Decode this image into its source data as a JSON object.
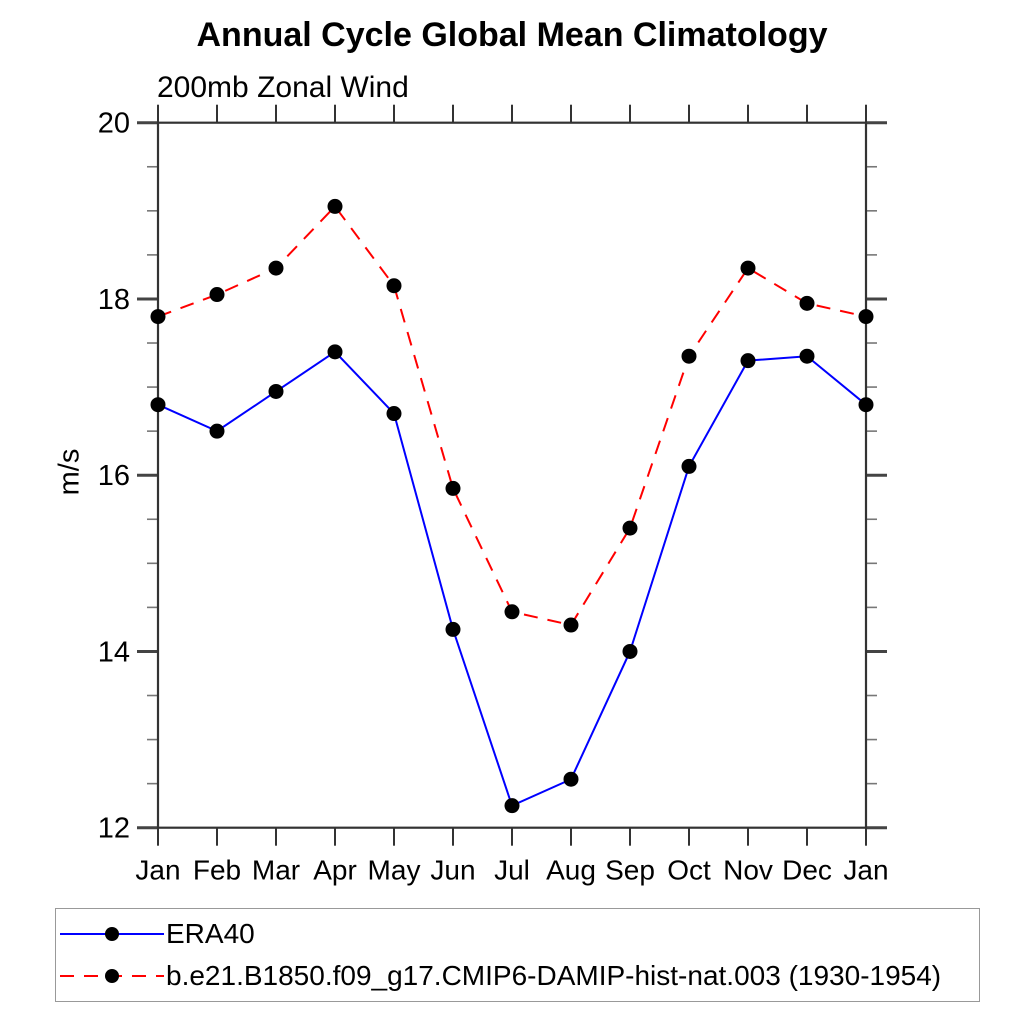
{
  "title": "Annual Cycle Global Mean Climatology",
  "subtitle": "200mb Zonal Wind",
  "ylabel": "m/s",
  "colors": {
    "era40_line": "#0000ff",
    "model_line": "#ff0000",
    "marker": "#000000",
    "axis": "#333333",
    "major_tick": "#444444",
    "minor_tick": "#777777",
    "legend_border": "#999999"
  },
  "chart_data": {
    "type": "line",
    "categories": [
      "Jan",
      "Feb",
      "Mar",
      "Apr",
      "May",
      "Jun",
      "Jul",
      "Aug",
      "Sep",
      "Oct",
      "Nov",
      "Dec",
      "Jan"
    ],
    "series": [
      {
        "id": "era40",
        "name": "ERA40",
        "color": "#0000ff",
        "style": "solid",
        "marker": "circle",
        "marker_color": "#000000",
        "values": [
          16.8,
          16.5,
          16.95,
          17.4,
          16.7,
          14.25,
          12.25,
          12.55,
          14.0,
          16.1,
          17.3,
          17.35,
          16.8
        ]
      },
      {
        "id": "model",
        "name": "b.e21.B1850.f09_g17.CMIP6-DAMIP-hist-nat.003 (1930-1954)",
        "color": "#ff0000",
        "style": "dashed",
        "marker": "circle",
        "marker_color": "#000000",
        "values": [
          17.8,
          18.05,
          18.35,
          19.05,
          18.15,
          15.85,
          14.45,
          14.3,
          15.4,
          17.35,
          18.35,
          17.95,
          17.8
        ]
      }
    ],
    "title": "Annual Cycle Global Mean Climatology",
    "subtitle": "200mb Zonal Wind",
    "xlabel": "",
    "ylabel": "m/s",
    "ylim": [
      12,
      20
    ],
    "y_major_ticks": [
      20,
      18,
      16,
      14,
      12
    ],
    "y_minor_step": 0.5,
    "grid": false,
    "frame": "box-with-outward-ticks",
    "legend_position": "bottom"
  }
}
